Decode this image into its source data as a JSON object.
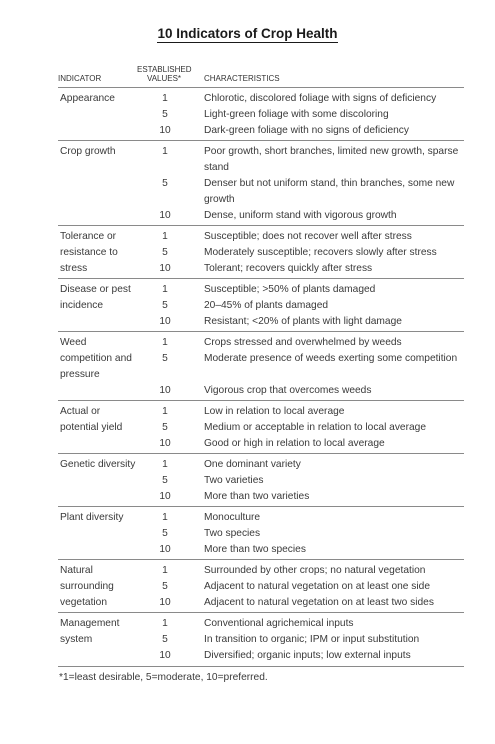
{
  "title": "10 Indicators of Crop Health",
  "headers": {
    "indicator": "INDICATOR",
    "values_line1": "ESTABLISHED",
    "values_line2": "VALUES*",
    "characteristics": "CHARACTERISTICS"
  },
  "rows": [
    {
      "indicator": "Appearance",
      "items": [
        {
          "value": "1",
          "text": "Chlorotic, discolored foliage with signs of deficiency"
        },
        {
          "value": "5",
          "text": "Light-green foliage with some discoloring"
        },
        {
          "value": "10",
          "text": "Dark-green foliage with no signs of deficiency"
        }
      ]
    },
    {
      "indicator": "Crop growth",
      "items": [
        {
          "value": "1",
          "text": "Poor growth, short branches, limited new growth, sparse stand"
        },
        {
          "value": "5",
          "text": "Denser but not uniform stand, thin branches, some new growth"
        },
        {
          "value": "10",
          "text": "Dense, uniform stand with vigorous growth"
        }
      ]
    },
    {
      "indicator": "Tolerance or resistance to stress",
      "items": [
        {
          "value": "1",
          "text": "Susceptible; does not recover well after stress"
        },
        {
          "value": "5",
          "text": "Moderately susceptible; recovers slowly after stress"
        },
        {
          "value": "10",
          "text": "Tolerant; recovers quickly after stress"
        }
      ]
    },
    {
      "indicator": "Disease or pest incidence",
      "items": [
        {
          "value": "1",
          "text": "Susceptible; >50% of plants damaged"
        },
        {
          "value": "5",
          "text": "20–45% of plants damaged"
        },
        {
          "value": "10",
          "text": "Resistant; <20% of plants with light damage"
        }
      ]
    },
    {
      "indicator": "Weed competition and pressure",
      "items": [
        {
          "value": "1",
          "text": "Crops stressed and overwhelmed by weeds"
        },
        {
          "value": "5",
          "text": "Moderate presence of weeds exerting some competition"
        },
        {
          "value": "10",
          "text": "Vigorous crop  that overcomes weeds"
        }
      ]
    },
    {
      "indicator": "Actual or potential yield",
      "items": [
        {
          "value": "1",
          "text": "Low in relation to local average"
        },
        {
          "value": "5",
          "text": "Medium or acceptable in relation to local average"
        },
        {
          "value": "10",
          "text": "Good or high in relation to local average"
        }
      ]
    },
    {
      "indicator": "Genetic diversity",
      "items": [
        {
          "value": "1",
          "text": "One dominant variety"
        },
        {
          "value": "5",
          "text": "Two varieties"
        },
        {
          "value": "10",
          "text": "More than two varieties"
        }
      ]
    },
    {
      "indicator": "Plant diversity",
      "items": [
        {
          "value": "1",
          "text": "Monoculture"
        },
        {
          "value": "5",
          "text": "Two species"
        },
        {
          "value": "10",
          "text": "More than two species"
        }
      ]
    },
    {
      "indicator": "Natural surrounding vegetation",
      "items": [
        {
          "value": "1",
          "text": "Surrounded by other crops; no natural vegetation"
        },
        {
          "value": "5",
          "text": "Adjacent to natural vegetation on at least one side"
        },
        {
          "value": "10",
          "text": "Adjacent to natural vegetation on at least two sides"
        }
      ]
    },
    {
      "indicator": "Management system",
      "items": [
        {
          "value": "1",
          "text": "Conventional agrichemical inputs"
        },
        {
          "value": "5",
          "text": "In transition to organic; IPM or input substitution"
        },
        {
          "value": "10",
          "text": "Diversified; organic inputs; low external inputs"
        }
      ]
    }
  ],
  "footnote": "*1=least desirable, 5=moderate, 10=preferred."
}
